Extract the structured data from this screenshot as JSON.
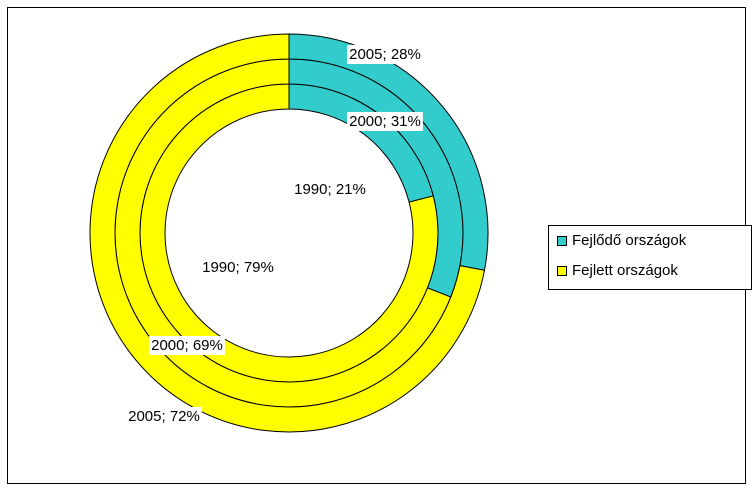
{
  "chart_data": {
    "type": "doughnut",
    "categories": [
      "1990",
      "2000",
      "2005"
    ],
    "series": [
      {
        "name": "Fejlődő országok",
        "color": "#33cccc",
        "values": [
          21,
          31,
          28
        ],
        "value_labels": [
          "1990; 21%",
          "2000; 31%",
          "2005; 28%"
        ]
      },
      {
        "name": "Fejlett országok",
        "color": "#ffff00",
        "values": [
          79,
          69,
          72
        ],
        "value_labels": [
          "1990; 79%",
          "2000; 69%",
          "2005; 72%"
        ]
      }
    ],
    "legend": "right"
  }
}
